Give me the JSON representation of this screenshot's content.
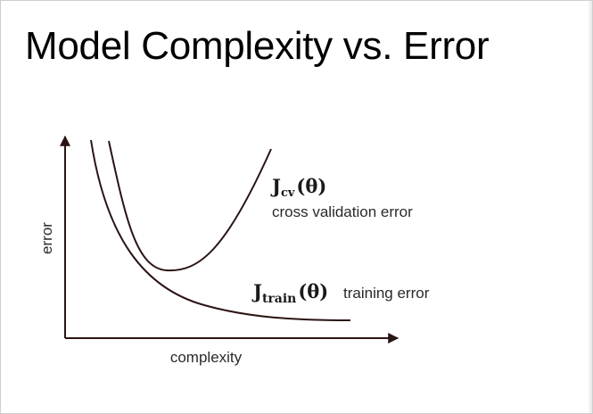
{
  "slide": {
    "title": "Model Complexity vs. Error"
  },
  "axes": {
    "x_label": "complexity",
    "y_label": "error"
  },
  "curves": {
    "cv": {
      "symbol_main": "J",
      "symbol_sub": "cv",
      "symbol_arg": "(θ)",
      "description": "cross validation error"
    },
    "train": {
      "symbol_main": "J",
      "symbol_sub": "train",
      "symbol_arg": "(θ)",
      "description": "training error"
    }
  },
  "colors": {
    "curve": "#2b1414",
    "axis": "#2b1414",
    "text": "#2a2a2a"
  }
}
